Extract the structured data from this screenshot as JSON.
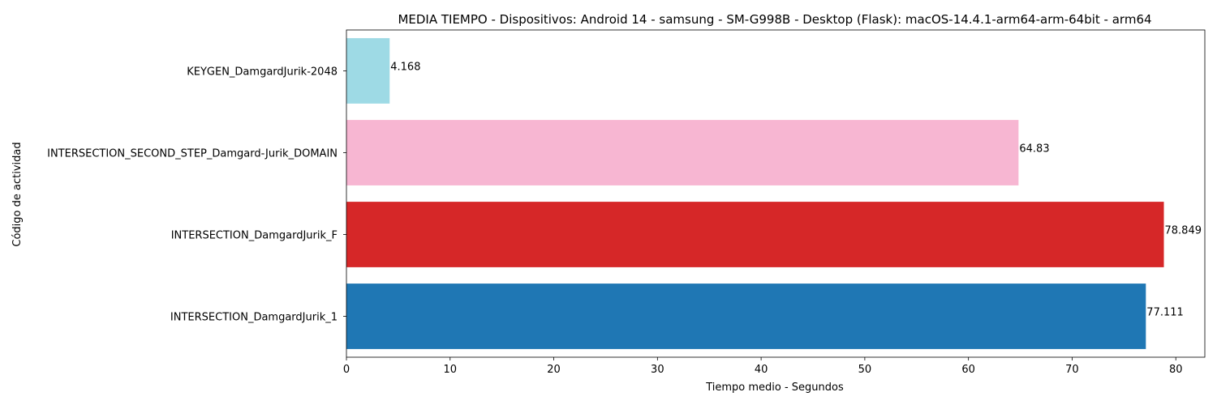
{
  "chart_data": {
    "type": "bar",
    "orientation": "horizontal",
    "title": "MEDIA TIEMPO - Dispositivos: Android 14 - samsung - SM-G998B - Desktop (Flask): macOS-14.4.1-arm64-arm-64bit - arm64",
    "xlabel": "Tiempo medio - Segundos",
    "ylabel": "Código de actividad",
    "xlim": [
      0,
      82.8
    ],
    "xticks": [
      0,
      10,
      20,
      30,
      40,
      50,
      60,
      70,
      80
    ],
    "grid": false,
    "categories": [
      "INTERSECTION_DamgardJurik_1",
      "INTERSECTION_DamgardJurik_F",
      "INTERSECTION_SECOND_STEP_Damgard-Jurik_DOMAIN",
      "KEYGEN_DamgardJurik-2048"
    ],
    "values": [
      77.111,
      78.849,
      64.83,
      4.168
    ],
    "value_labels": [
      "77.111",
      "78.849",
      "64.83",
      "4.168"
    ],
    "colors": [
      "#1f77b4",
      "#d62728",
      "#f7b6d2",
      "#9edae5"
    ]
  }
}
